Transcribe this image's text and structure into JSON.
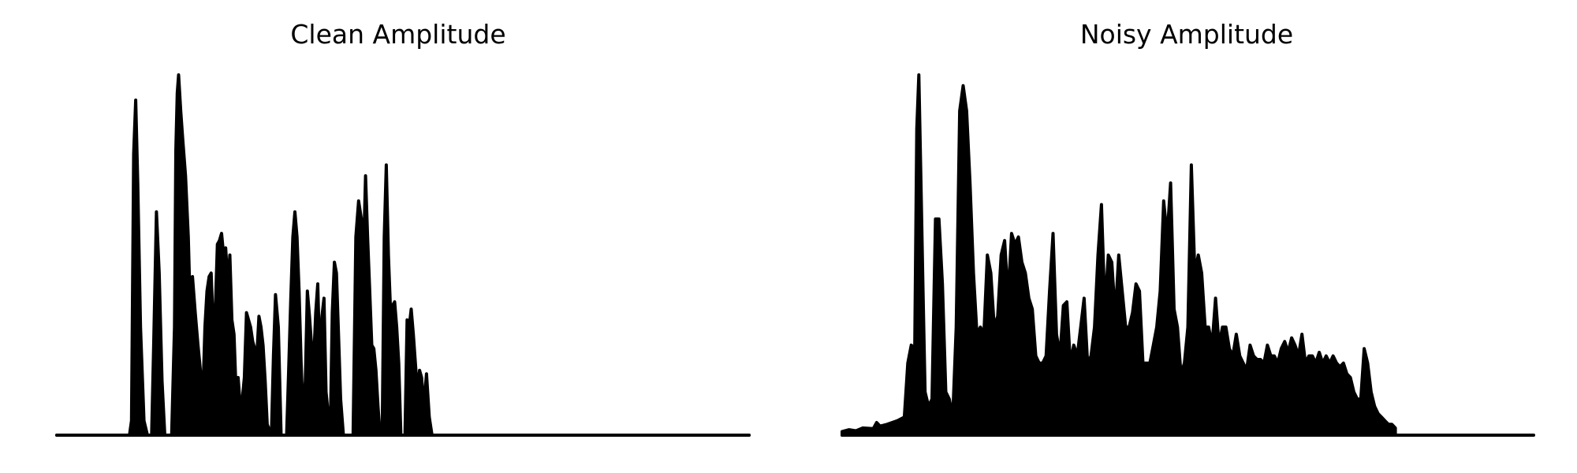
{
  "chart_data": [
    {
      "type": "area",
      "title": "Clean Amplitude",
      "xlabel": "",
      "ylabel": "",
      "ylim": [
        0,
        1.0
      ],
      "axes_visible": false,
      "grid": false,
      "color": "#000000",
      "envelope": [
        [
          0.0,
          0.0
        ],
        [
          0.105,
          0.0
        ],
        [
          0.108,
          0.04
        ],
        [
          0.111,
          0.78
        ],
        [
          0.114,
          0.93
        ],
        [
          0.117,
          0.7
        ],
        [
          0.121,
          0.3
        ],
        [
          0.126,
          0.04
        ],
        [
          0.131,
          0.0
        ],
        [
          0.137,
          0.0
        ],
        [
          0.14,
          0.25
        ],
        [
          0.144,
          0.62
        ],
        [
          0.148,
          0.45
        ],
        [
          0.152,
          0.15
        ],
        [
          0.156,
          0.0
        ],
        [
          0.166,
          0.0
        ],
        [
          0.17,
          0.3
        ],
        [
          0.172,
          0.79
        ],
        [
          0.174,
          0.95
        ],
        [
          0.176,
          1.0
        ],
        [
          0.179,
          0.9
        ],
        [
          0.182,
          0.82
        ],
        [
          0.186,
          0.72
        ],
        [
          0.19,
          0.55
        ],
        [
          0.193,
          0.33
        ],
        [
          0.196,
          0.44
        ],
        [
          0.2,
          0.34
        ],
        [
          0.204,
          0.25
        ],
        [
          0.208,
          0.17
        ],
        [
          0.211,
          0.11
        ],
        [
          0.214,
          0.3
        ],
        [
          0.217,
          0.4
        ],
        [
          0.22,
          0.44
        ],
        [
          0.223,
          0.45
        ],
        [
          0.226,
          0.3
        ],
        [
          0.229,
          0.35
        ],
        [
          0.232,
          0.53
        ],
        [
          0.235,
          0.54
        ],
        [
          0.238,
          0.56
        ],
        [
          0.241,
          0.5
        ],
        [
          0.244,
          0.52
        ],
        [
          0.247,
          0.42
        ],
        [
          0.25,
          0.5
        ],
        [
          0.253,
          0.32
        ],
        [
          0.256,
          0.28
        ],
        [
          0.259,
          0.12
        ],
        [
          0.262,
          0.16
        ],
        [
          0.265,
          0.08
        ],
        [
          0.268,
          0.1
        ],
        [
          0.271,
          0.16
        ],
        [
          0.274,
          0.34
        ],
        [
          0.277,
          0.32
        ],
        [
          0.28,
          0.3
        ],
        [
          0.283,
          0.26
        ],
        [
          0.286,
          0.24
        ],
        [
          0.289,
          0.22
        ],
        [
          0.292,
          0.33
        ],
        [
          0.295,
          0.3
        ],
        [
          0.298,
          0.25
        ],
        [
          0.301,
          0.15
        ],
        [
          0.304,
          0.03
        ],
        [
          0.31,
          0.0
        ],
        [
          0.313,
          0.22
        ],
        [
          0.316,
          0.39
        ],
        [
          0.32,
          0.3
        ],
        [
          0.324,
          0.0
        ],
        [
          0.332,
          0.0
        ],
        [
          0.335,
          0.18
        ],
        [
          0.338,
          0.38
        ],
        [
          0.341,
          0.55
        ],
        [
          0.344,
          0.62
        ],
        [
          0.347,
          0.55
        ],
        [
          0.35,
          0.4
        ],
        [
          0.353,
          0.2
        ],
        [
          0.356,
          0.05
        ],
        [
          0.359,
          0.15
        ],
        [
          0.362,
          0.4
        ],
        [
          0.365,
          0.33
        ],
        [
          0.368,
          0.25
        ],
        [
          0.371,
          0.2
        ],
        [
          0.374,
          0.34
        ],
        [
          0.377,
          0.42
        ],
        [
          0.38,
          0.2
        ],
        [
          0.383,
          0.33
        ],
        [
          0.386,
          0.38
        ],
        [
          0.389,
          0.12
        ],
        [
          0.392,
          0.06
        ],
        [
          0.395,
          0.0
        ],
        [
          0.398,
          0.34
        ],
        [
          0.401,
          0.48
        ],
        [
          0.404,
          0.45
        ],
        [
          0.407,
          0.28
        ],
        [
          0.41,
          0.1
        ],
        [
          0.414,
          0.0
        ],
        [
          0.428,
          0.0
        ],
        [
          0.432,
          0.55
        ],
        [
          0.436,
          0.65
        ],
        [
          0.44,
          0.6
        ],
        [
          0.443,
          0.5
        ],
        [
          0.446,
          0.72
        ],
        [
          0.449,
          0.55
        ],
        [
          0.452,
          0.4
        ],
        [
          0.455,
          0.25
        ],
        [
          0.458,
          0.24
        ],
        [
          0.461,
          0.18
        ],
        [
          0.464,
          0.08
        ],
        [
          0.467,
          0.0
        ],
        [
          0.47,
          0.0
        ],
        [
          0.473,
          0.55
        ],
        [
          0.476,
          0.75
        ],
        [
          0.479,
          0.5
        ],
        [
          0.482,
          0.35
        ],
        [
          0.485,
          0.36
        ],
        [
          0.488,
          0.37
        ],
        [
          0.491,
          0.3
        ],
        [
          0.494,
          0.2
        ],
        [
          0.497,
          0.0
        ],
        [
          0.503,
          0.0
        ],
        [
          0.506,
          0.32
        ],
        [
          0.509,
          0.3
        ],
        [
          0.512,
          0.35
        ],
        [
          0.515,
          0.28
        ],
        [
          0.518,
          0.2
        ],
        [
          0.521,
          0.12
        ],
        [
          0.524,
          0.18
        ],
        [
          0.527,
          0.16
        ],
        [
          0.53,
          0.08
        ],
        [
          0.534,
          0.17
        ],
        [
          0.538,
          0.05
        ],
        [
          0.542,
          0.0
        ],
        [
          1.0,
          0.0
        ]
      ]
    },
    {
      "type": "area",
      "title": "Noisy Amplitude",
      "xlabel": "",
      "ylabel": "",
      "ylim": [
        0,
        1.0
      ],
      "axes_visible": false,
      "grid": false,
      "color": "#000000",
      "envelope": [
        [
          0.0,
          0.01
        ],
        [
          0.01,
          0.015
        ],
        [
          0.02,
          0.012
        ],
        [
          0.03,
          0.02
        ],
        [
          0.045,
          0.018
        ],
        [
          0.05,
          0.035
        ],
        [
          0.055,
          0.025
        ],
        [
          0.065,
          0.03
        ],
        [
          0.08,
          0.04
        ],
        [
          0.09,
          0.05
        ],
        [
          0.095,
          0.2
        ],
        [
          0.1,
          0.25
        ],
        [
          0.105,
          0.24
        ],
        [
          0.108,
          0.85
        ],
        [
          0.111,
          1.0
        ],
        [
          0.114,
          0.7
        ],
        [
          0.117,
          0.4
        ],
        [
          0.12,
          0.12
        ],
        [
          0.125,
          0.08
        ],
        [
          0.13,
          0.1
        ],
        [
          0.135,
          0.6
        ],
        [
          0.14,
          0.6
        ],
        [
          0.145,
          0.42
        ],
        [
          0.15,
          0.12
        ],
        [
          0.155,
          0.1
        ],
        [
          0.16,
          0.05
        ],
        [
          0.165,
          0.3
        ],
        [
          0.17,
          0.9
        ],
        [
          0.175,
          0.97
        ],
        [
          0.18,
          0.9
        ],
        [
          0.185,
          0.7
        ],
        [
          0.19,
          0.45
        ],
        [
          0.195,
          0.28
        ],
        [
          0.2,
          0.3
        ],
        [
          0.205,
          0.28
        ],
        [
          0.21,
          0.5
        ],
        [
          0.215,
          0.45
        ],
        [
          0.22,
          0.3
        ],
        [
          0.225,
          0.33
        ],
        [
          0.23,
          0.5
        ],
        [
          0.235,
          0.54
        ],
        [
          0.24,
          0.38
        ],
        [
          0.245,
          0.56
        ],
        [
          0.25,
          0.53
        ],
        [
          0.255,
          0.55
        ],
        [
          0.26,
          0.48
        ],
        [
          0.265,
          0.45
        ],
        [
          0.27,
          0.38
        ],
        [
          0.275,
          0.35
        ],
        [
          0.28,
          0.22
        ],
        [
          0.285,
          0.2
        ],
        [
          0.29,
          0.2
        ],
        [
          0.295,
          0.22
        ],
        [
          0.3,
          0.4
        ],
        [
          0.305,
          0.56
        ],
        [
          0.31,
          0.28
        ],
        [
          0.315,
          0.22
        ],
        [
          0.32,
          0.36
        ],
        [
          0.325,
          0.37
        ],
        [
          0.33,
          0.2
        ],
        [
          0.335,
          0.25
        ],
        [
          0.34,
          0.22
        ],
        [
          0.345,
          0.3
        ],
        [
          0.35,
          0.38
        ],
        [
          0.355,
          0.2
        ],
        [
          0.36,
          0.22
        ],
        [
          0.365,
          0.3
        ],
        [
          0.37,
          0.5
        ],
        [
          0.375,
          0.64
        ],
        [
          0.38,
          0.35
        ],
        [
          0.385,
          0.5
        ],
        [
          0.39,
          0.48
        ],
        [
          0.395,
          0.33
        ],
        [
          0.4,
          0.5
        ],
        [
          0.405,
          0.4
        ],
        [
          0.41,
          0.3
        ],
        [
          0.415,
          0.3
        ],
        [
          0.42,
          0.34
        ],
        [
          0.425,
          0.42
        ],
        [
          0.43,
          0.4
        ],
        [
          0.435,
          0.2
        ],
        [
          0.44,
          0.2
        ],
        [
          0.445,
          0.2
        ],
        [
          0.45,
          0.25
        ],
        [
          0.455,
          0.3
        ],
        [
          0.46,
          0.4
        ],
        [
          0.465,
          0.65
        ],
        [
          0.47,
          0.55
        ],
        [
          0.475,
          0.7
        ],
        [
          0.48,
          0.35
        ],
        [
          0.485,
          0.3
        ],
        [
          0.49,
          0.17
        ],
        [
          0.495,
          0.2
        ],
        [
          0.5,
          0.3
        ],
        [
          0.505,
          0.75
        ],
        [
          0.51,
          0.45
        ],
        [
          0.515,
          0.5
        ],
        [
          0.52,
          0.45
        ],
        [
          0.525,
          0.3
        ],
        [
          0.53,
          0.3
        ],
        [
          0.535,
          0.25
        ],
        [
          0.54,
          0.38
        ],
        [
          0.545,
          0.25
        ],
        [
          0.55,
          0.3
        ],
        [
          0.555,
          0.3
        ],
        [
          0.56,
          0.24
        ],
        [
          0.565,
          0.22
        ],
        [
          0.57,
          0.28
        ],
        [
          0.575,
          0.22
        ],
        [
          0.58,
          0.2
        ],
        [
          0.585,
          0.18
        ],
        [
          0.59,
          0.25
        ],
        [
          0.595,
          0.22
        ],
        [
          0.6,
          0.21
        ],
        [
          0.605,
          0.21
        ],
        [
          0.61,
          0.2
        ],
        [
          0.615,
          0.25
        ],
        [
          0.62,
          0.22
        ],
        [
          0.625,
          0.22
        ],
        [
          0.63,
          0.2
        ],
        [
          0.635,
          0.24
        ],
        [
          0.64,
          0.26
        ],
        [
          0.645,
          0.23
        ],
        [
          0.65,
          0.27
        ],
        [
          0.655,
          0.25
        ],
        [
          0.66,
          0.22
        ],
        [
          0.665,
          0.28
        ],
        [
          0.67,
          0.2
        ],
        [
          0.675,
          0.22
        ],
        [
          0.68,
          0.22
        ],
        [
          0.685,
          0.2
        ],
        [
          0.69,
          0.23
        ],
        [
          0.695,
          0.2
        ],
        [
          0.7,
          0.22
        ],
        [
          0.705,
          0.2
        ],
        [
          0.71,
          0.22
        ],
        [
          0.715,
          0.2
        ],
        [
          0.72,
          0.19
        ],
        [
          0.725,
          0.2
        ],
        [
          0.73,
          0.17
        ],
        [
          0.735,
          0.16
        ],
        [
          0.74,
          0.12
        ],
        [
          0.745,
          0.1
        ],
        [
          0.75,
          0.1
        ],
        [
          0.755,
          0.24
        ],
        [
          0.76,
          0.2
        ],
        [
          0.765,
          0.12
        ],
        [
          0.77,
          0.08
        ],
        [
          0.775,
          0.06
        ],
        [
          0.78,
          0.05
        ],
        [
          0.785,
          0.04
        ],
        [
          0.79,
          0.03
        ],
        [
          0.795,
          0.03
        ],
        [
          0.8,
          0.02
        ]
      ]
    }
  ]
}
